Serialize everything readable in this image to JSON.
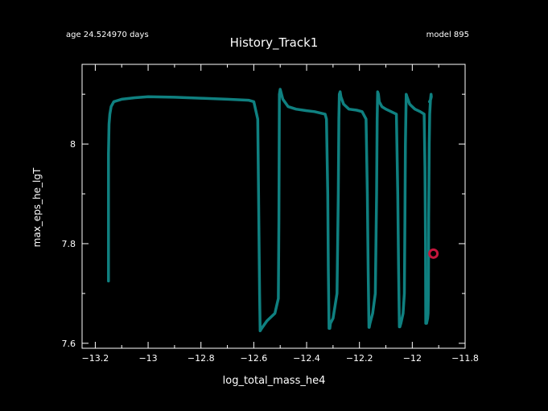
{
  "header": {
    "age": "age 24.524970 days",
    "model": "model 895"
  },
  "chart_data": {
    "type": "line",
    "title": "History_Track1",
    "xlabel": "log_total_mass_he4",
    "ylabel": "max_eps_he_lgT",
    "xlim": [
      -13.25,
      -11.8
    ],
    "ylim": [
      7.59,
      8.16
    ],
    "xticks": [
      -13.2,
      -13,
      -12.8,
      -12.6,
      -12.4,
      -12.2,
      -12,
      -11.8
    ],
    "xtick_labels": [
      "−13.2",
      "−13",
      "−12.8",
      "−12.6",
      "−12.4",
      "−12.2",
      "−12",
      "−11.8"
    ],
    "yticks": [
      7.6,
      7.8,
      8
    ],
    "ytick_labels": [
      "7.6",
      "7.8",
      "8"
    ],
    "grid": false,
    "line_color": "#0f8080",
    "marker_color": "#c4163c",
    "series": [
      {
        "x": [
          -13.15,
          -13.15,
          -13.148,
          -13.145,
          -13.14,
          -13.13,
          -13.1,
          -13.05,
          -13.0,
          -12.9,
          -12.8,
          -12.7,
          -12.62,
          -12.6,
          -12.585,
          -12.582,
          -12.578,
          -12.576,
          -12.57,
          -12.55,
          -12.52,
          -12.507,
          -12.505,
          -12.503,
          -12.5,
          -12.49,
          -12.47,
          -12.44,
          -12.4,
          -12.37,
          -12.33,
          -12.325,
          -12.32,
          -12.318,
          -12.315,
          -12.312,
          -12.31,
          -12.3,
          -12.285,
          -12.28,
          -12.278,
          -12.276,
          -12.273,
          -12.27,
          -12.26,
          -12.24,
          -12.21,
          -12.19,
          -12.175,
          -12.17,
          -12.167,
          -12.164,
          -12.163,
          -12.16,
          -12.15,
          -12.14,
          -12.135,
          -12.133,
          -12.131,
          -12.128,
          -12.125,
          -12.115,
          -12.1,
          -12.08,
          -12.06,
          -12.055,
          -12.052,
          -12.049,
          -12.047,
          -12.043,
          -12.035,
          -12.03,
          -12.028,
          -12.026,
          -12.023,
          -12.02,
          -12.01,
          -12.0,
          -11.99,
          -11.97,
          -11.955,
          -11.952,
          -11.95,
          -11.949,
          -11.946,
          -11.942,
          -11.94,
          -11.939,
          -11.938,
          -11.936,
          -11.934,
          -11.931,
          -11.929,
          -11.928,
          -11.93,
          -11.935
        ],
        "y": [
          7.725,
          7.98,
          8.04,
          8.06,
          8.075,
          8.085,
          8.09,
          8.093,
          8.095,
          8.094,
          8.092,
          8.09,
          8.088,
          8.085,
          8.05,
          7.9,
          7.7,
          7.625,
          7.63,
          7.645,
          7.66,
          7.69,
          7.85,
          8.1,
          8.11,
          8.09,
          8.075,
          8.07,
          8.067,
          8.065,
          8.06,
          8.05,
          7.9,
          7.75,
          7.63,
          7.63,
          7.64,
          7.65,
          7.7,
          7.9,
          8.05,
          8.1,
          8.105,
          8.095,
          8.08,
          8.07,
          8.068,
          8.065,
          8.05,
          7.9,
          7.75,
          7.632,
          7.632,
          7.64,
          7.66,
          7.7,
          7.9,
          8.05,
          8.105,
          8.1,
          8.085,
          8.075,
          8.07,
          8.065,
          8.06,
          7.9,
          7.75,
          7.633,
          7.633,
          7.64,
          7.66,
          7.7,
          7.85,
          8.0,
          8.1,
          8.095,
          8.08,
          8.075,
          8.07,
          8.065,
          8.06,
          7.95,
          7.8,
          7.64,
          7.64,
          7.65,
          7.66,
          7.7,
          7.85,
          8.0,
          8.06,
          8.09,
          8.1,
          8.095,
          8.09,
          8.085
        ]
      }
    ],
    "current_point": {
      "x": -11.92,
      "y": 7.78
    }
  }
}
